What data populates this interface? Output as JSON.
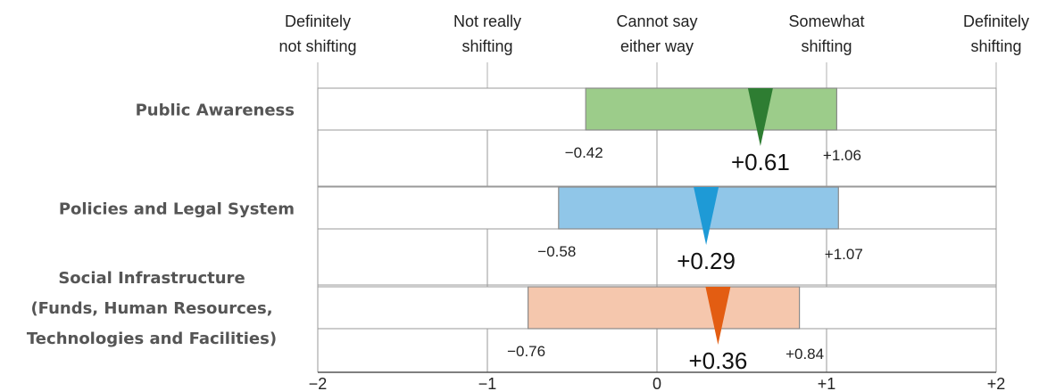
{
  "chart_data": {
    "type": "bar",
    "title": "",
    "xlabel": "",
    "ylabel": "",
    "xlim": [
      -2,
      2
    ],
    "x_ticks": [
      {
        "value": -2,
        "label": "−2"
      },
      {
        "value": -1,
        "label": "−1"
      },
      {
        "value": 0,
        "label": "0"
      },
      {
        "value": 1,
        "label": "+1"
      },
      {
        "value": 2,
        "label": "+2"
      }
    ],
    "scale_labels": [
      {
        "value": -2,
        "lines": [
          "Definitely",
          "not shifting"
        ]
      },
      {
        "value": -1,
        "lines": [
          "Not really",
          "shifting"
        ]
      },
      {
        "value": 0,
        "lines": [
          "Cannot say",
          "either way"
        ]
      },
      {
        "value": 1,
        "lines": [
          "Somewhat",
          "shifting"
        ]
      },
      {
        "value": 2,
        "lines": [
          "Definitely",
          "shifting"
        ]
      }
    ],
    "grid": true,
    "categories": [
      {
        "lines": [
          "Public Awareness"
        ],
        "min": -0.42,
        "max": 1.06,
        "mean": 0.61,
        "min_label": "−0.42",
        "max_label": "+1.06",
        "mean_label": "+0.61",
        "bar_color": "#9ccc8a",
        "marker_color": "#2e7d32"
      },
      {
        "lines": [
          "Policies and Legal System"
        ],
        "min": -0.58,
        "max": 1.07,
        "mean": 0.29,
        "min_label": "−0.58",
        "max_label": "+1.07",
        "mean_label": "+0.29",
        "bar_color": "#90c6e8",
        "marker_color": "#1e9ad6"
      },
      {
        "lines": [
          "Social Infrastructure",
          "(Funds, Human Resources,",
          "Technologies and Facilities)"
        ],
        "min": -0.76,
        "max": 0.84,
        "mean": 0.36,
        "min_label": "−0.76",
        "max_label": "+0.84",
        "mean_label": "+0.36",
        "bar_color": "#f5c7ad",
        "marker_color": "#e35d12"
      }
    ]
  }
}
